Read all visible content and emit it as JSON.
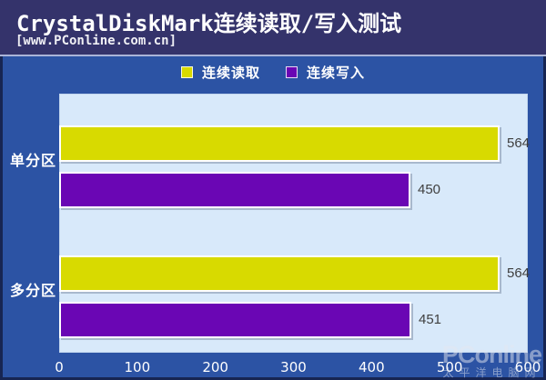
{
  "header": {
    "title": "CrystalDiskMark连续读取/写入测试",
    "subtitle": "[www.PConline.com.cn]"
  },
  "chart_data": {
    "type": "bar",
    "orientation": "horizontal",
    "categories": [
      "单分区",
      "多分区"
    ],
    "series": [
      {
        "name": "连续读取",
        "color": "#d8da00",
        "values": [
          564,
          564
        ]
      },
      {
        "name": "连续写入",
        "color": "#6a06b4",
        "values": [
          450,
          451
        ]
      }
    ],
    "xlim": [
      0,
      600
    ],
    "xticks": [
      0,
      100,
      200,
      300,
      400,
      500,
      600
    ],
    "legend_position": "top-center",
    "grid": false,
    "plot_background": "#d8e9fa",
    "chart_background": "#2c53a4"
  },
  "watermark": {
    "brand": "PConline",
    "caption": "太平洋电脑网"
  },
  "colors": {
    "title_band": "#34336b",
    "chart_background": "#2c53a4",
    "plot_background": "#d8e9fa",
    "read_bar": "#d8da00",
    "write_bar": "#6a06b4",
    "value_label": "#3f3f3f",
    "axis_text": "#ffffff"
  }
}
